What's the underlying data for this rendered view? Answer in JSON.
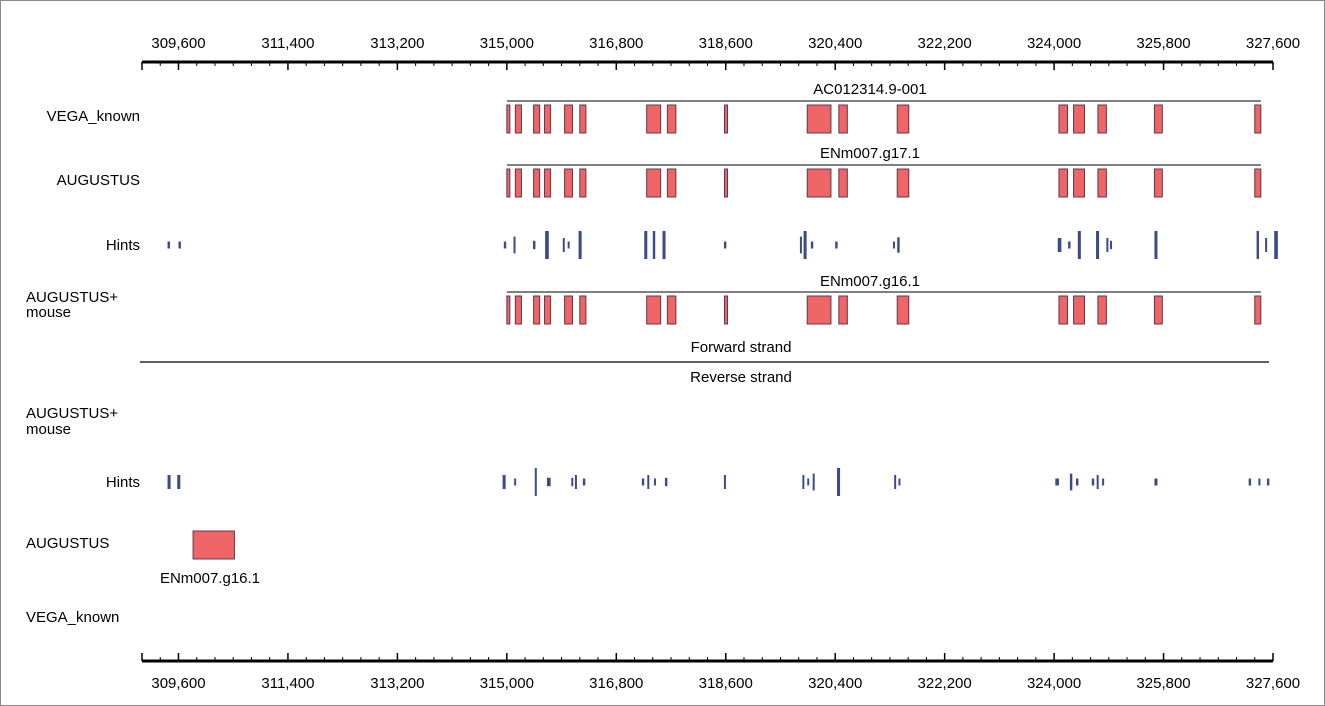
{
  "axis": {
    "ticks": [
      "309,600",
      "311,400",
      "313,200",
      "315,000",
      "316,800",
      "318,600",
      "320,400",
      "322,200",
      "324,000",
      "325,800",
      "327,600"
    ],
    "tick_values": [
      309600,
      311400,
      313200,
      315000,
      316800,
      318600,
      320400,
      322200,
      324000,
      325800,
      327600
    ],
    "range": [
      309000,
      327600
    ]
  },
  "strands": {
    "forward": "Forward strand",
    "reverse": "Reverse strand"
  },
  "tracks": {
    "fwd_vega": {
      "label": "VEGA_known",
      "gene_name": "AC012314.9-001"
    },
    "fwd_augustus": {
      "label": "AUGUSTUS",
      "gene_name": "ENm007.g17.1"
    },
    "fwd_hints": {
      "label": "Hints"
    },
    "fwd_augustus_mouse": {
      "label_line1": "AUGUSTUS+",
      "label_line2": "mouse",
      "gene_name": "ENm007.g16.1"
    },
    "rev_augustus_mouse": {
      "label_line1": "AUGUSTUS+",
      "label_line2": "mouse"
    },
    "rev_hints": {
      "label": "Hints"
    },
    "rev_augustus": {
      "label": "AUGUSTUS",
      "gene_name": "ENm007.g16.1"
    },
    "rev_vega": {
      "label": "VEGA_known"
    }
  },
  "colors": {
    "exon_fill": "#ef6464",
    "exon_stroke": "#5a3a50",
    "hint": "#3c4a8c",
    "axis": "#000000"
  },
  "features": {
    "fwd_gene_span": [
      315000,
      327400
    ],
    "fwd_exons": [
      [
        315000,
        315040
      ],
      [
        315140,
        315240
      ],
      [
        315440,
        315540
      ],
      [
        315620,
        315720
      ],
      [
        315950,
        316080
      ],
      [
        316200,
        316300
      ],
      [
        317300,
        317530
      ],
      [
        317640,
        317780
      ],
      [
        318580,
        318620
      ],
      [
        319940,
        320330
      ],
      [
        320460,
        320600
      ],
      [
        321420,
        321610
      ],
      [
        324080,
        324220
      ],
      [
        324320,
        324500
      ],
      [
        324720,
        324860
      ],
      [
        325650,
        325780
      ],
      [
        327300,
        327400
      ]
    ],
    "fwd_augustus_mouse_exons": [
      [
        315000,
        315040
      ],
      [
        315140,
        315240
      ],
      [
        315440,
        315540
      ],
      [
        315620,
        315720
      ],
      [
        315950,
        316080
      ],
      [
        316200,
        316300
      ],
      [
        317300,
        317530
      ],
      [
        317640,
        317780
      ],
      [
        318580,
        318620
      ],
      [
        319940,
        320330
      ],
      [
        320460,
        320600
      ],
      [
        321420,
        321610
      ],
      [
        324080,
        324220
      ],
      [
        324320,
        324500
      ],
      [
        324720,
        324860
      ],
      [
        325650,
        325780
      ],
      [
        327300,
        327400
      ]
    ],
    "fwd_hints": [
      [
        309420,
        309460,
        0.25
      ],
      [
        309600,
        309640,
        0.25
      ],
      [
        314950,
        314990,
        0.25
      ],
      [
        315110,
        315130,
        0.6
      ],
      [
        315430,
        315470,
        0.3
      ],
      [
        315630,
        315690,
        1.0
      ],
      [
        315920,
        315940,
        0.5
      ],
      [
        316000,
        316020,
        0.25
      ],
      [
        316180,
        316230,
        1.0
      ],
      [
        317260,
        317310,
        1.0
      ],
      [
        317400,
        317440,
        1.0
      ],
      [
        317560,
        317610,
        1.0
      ],
      [
        318570,
        318610,
        0.25
      ],
      [
        319820,
        319840,
        0.6
      ],
      [
        319880,
        319930,
        1.0
      ],
      [
        320000,
        320040,
        0.25
      ],
      [
        320400,
        320440,
        0.25
      ],
      [
        321350,
        321380,
        0.25
      ],
      [
        321420,
        321460,
        0.55
      ],
      [
        324060,
        324120,
        0.5
      ],
      [
        324230,
        324270,
        0.25
      ],
      [
        324390,
        324440,
        1.0
      ],
      [
        324690,
        324740,
        1.0
      ],
      [
        324860,
        324880,
        0.5
      ],
      [
        324920,
        324940,
        0.3
      ],
      [
        325650,
        325700,
        1.0
      ],
      [
        327330,
        327370,
        1.0
      ],
      [
        327470,
        327490,
        0.5
      ],
      [
        327620,
        327680,
        1.0
      ]
    ],
    "rev_hints": [
      [
        309420,
        309470,
        0.5
      ],
      [
        309580,
        309630,
        0.5
      ],
      [
        314930,
        314980,
        0.5
      ],
      [
        315120,
        315140,
        0.25
      ],
      [
        315460,
        315490,
        1.0
      ],
      [
        315660,
        315720,
        0.3
      ],
      [
        316060,
        316080,
        0.3
      ],
      [
        316120,
        316140,
        0.5
      ],
      [
        316250,
        316290,
        0.25
      ],
      [
        317220,
        317260,
        0.25
      ],
      [
        317310,
        317330,
        0.5
      ],
      [
        317420,
        317450,
        0.25
      ],
      [
        317600,
        317640,
        0.3
      ],
      [
        318570,
        318600,
        0.5
      ],
      [
        319860,
        319880,
        0.5
      ],
      [
        319940,
        319970,
        0.25
      ],
      [
        320030,
        320060,
        0.6
      ],
      [
        320430,
        320480,
        1.0
      ],
      [
        321370,
        321400,
        0.5
      ],
      [
        321440,
        321470,
        0.25
      ],
      [
        324020,
        324080,
        0.25
      ],
      [
        324260,
        324300,
        0.6
      ],
      [
        324360,
        324400,
        0.25
      ],
      [
        324620,
        324660,
        0.25
      ],
      [
        324700,
        324730,
        0.5
      ],
      [
        324790,
        324810,
        0.25
      ],
      [
        325650,
        325700,
        0.25
      ],
      [
        327200,
        327240,
        0.25
      ],
      [
        327360,
        327380,
        0.25
      ],
      [
        327500,
        327540,
        0.25
      ]
    ],
    "rev_augustus_exon": [
      309840,
      310520
    ]
  }
}
